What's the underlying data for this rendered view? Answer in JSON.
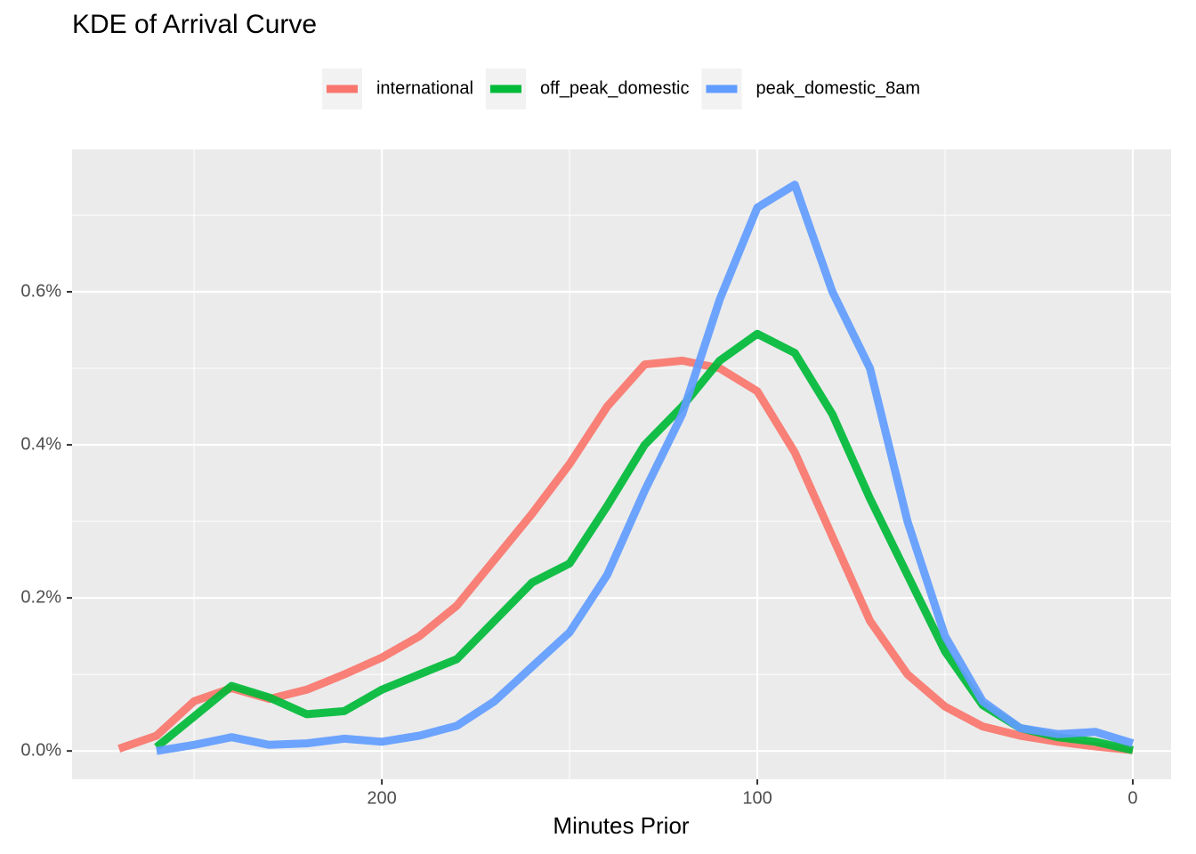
{
  "chart_data": {
    "type": "line",
    "title": "KDE of Arrival Curve",
    "x_label": "Minutes Prior",
    "x": [
      270,
      260,
      250,
      240,
      230,
      220,
      210,
      200,
      190,
      180,
      170,
      160,
      150,
      140,
      130,
      120,
      110,
      100,
      90,
      80,
      70,
      60,
      50,
      40,
      30,
      20,
      10,
      0
    ],
    "series": [
      {
        "name": "international",
        "color": "#F8766D",
        "values": [
          0.003,
          0.02,
          0.065,
          0.082,
          0.068,
          0.08,
          0.1,
          0.122,
          0.15,
          0.19,
          0.25,
          0.31,
          0.375,
          0.45,
          0.505,
          0.51,
          0.5,
          0.47,
          0.39,
          0.28,
          0.17,
          0.1,
          0.058,
          0.032,
          0.02,
          0.012,
          0.006,
          0.001
        ]
      },
      {
        "name": "off_peak_domestic",
        "color": "#00BA38",
        "values": [
          null,
          0.005,
          0.045,
          0.085,
          0.07,
          0.048,
          0.052,
          0.08,
          0.1,
          0.12,
          0.17,
          0.22,
          0.245,
          0.32,
          0.4,
          0.45,
          0.51,
          0.545,
          0.52,
          0.44,
          0.33,
          0.23,
          0.13,
          0.06,
          0.03,
          0.018,
          0.012,
          0.001
        ]
      },
      {
        "name": "peak_domestic_8am",
        "color": "#619CFF",
        "values": [
          null,
          0.0,
          0.008,
          0.018,
          0.008,
          0.01,
          0.016,
          0.012,
          0.02,
          0.033,
          0.065,
          0.11,
          0.155,
          0.23,
          0.34,
          0.44,
          0.59,
          0.71,
          0.74,
          0.6,
          0.5,
          0.3,
          0.15,
          0.065,
          0.03,
          0.022,
          0.025,
          0.01
        ]
      }
    ],
    "xlim": [
      282.5,
      -10.2
    ],
    "xticks": [
      200,
      100,
      0
    ],
    "x_minor_ticks": [
      250,
      150,
      50
    ],
    "ylim": [
      -0.037,
      0.786
    ],
    "yticks": [
      {
        "value": 0,
        "label": "0.0%"
      },
      {
        "value": 0.2,
        "label": "0.2%"
      },
      {
        "value": 0.4,
        "label": "0.4%"
      },
      {
        "value": 0.6,
        "label": "0.6%"
      }
    ],
    "y_minor_ticks": [
      0.1,
      0.3,
      0.5,
      0.7
    ],
    "grid": true,
    "legend_position": "top"
  }
}
